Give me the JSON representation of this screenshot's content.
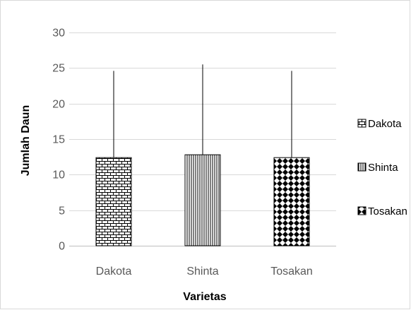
{
  "chart_data": {
    "type": "bar",
    "categories": [
      "Dakota",
      "Shinta",
      "Tosakan"
    ],
    "series": [
      {
        "name": "Dakota",
        "values": [
          12.4,
          null,
          null
        ],
        "pattern": "brick"
      },
      {
        "name": "Shinta",
        "values": [
          null,
          12.8,
          null
        ],
        "pattern": "vertical-lines"
      },
      {
        "name": "Tosakan",
        "values": [
          null,
          null,
          12.4
        ],
        "pattern": "diamond-checker"
      }
    ],
    "error_bar_upper": [
      24.6,
      25.5,
      24.6
    ],
    "xlabel": "Varietas",
    "ylabel": "Jumlah Daun",
    "ylim": [
      0,
      30
    ],
    "yticks": [
      0,
      5,
      10,
      15,
      20,
      25,
      30
    ],
    "grid": true,
    "legend_position": "right",
    "colors": {
      "bar_fill": "#ffffff",
      "pattern": "#000000",
      "grid": "#d9d9d9",
      "tick_text": "#595959"
    }
  }
}
